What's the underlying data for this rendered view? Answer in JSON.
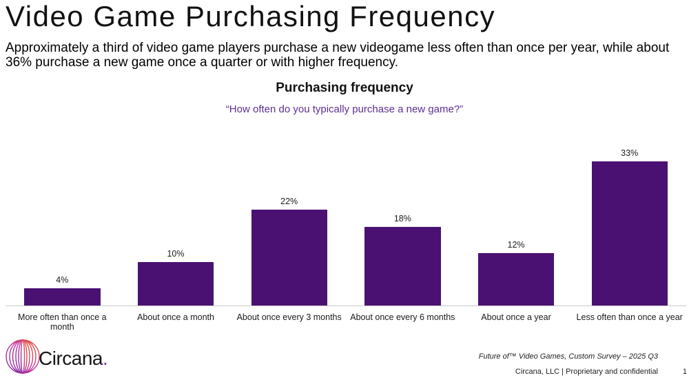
{
  "page": {
    "title": "Video Game Purchasing Frequency",
    "subtitle": "Approximately a third of video game players purchase a new videogame less often than once per year, while about 36% purchase a new game once a quarter or with higher frequency."
  },
  "chart": {
    "title": "Purchasing frequency",
    "question": "“How often do you typically purchase a new game?”"
  },
  "chart_data": {
    "type": "bar",
    "title": "Purchasing frequency",
    "subtitle": "“How often do you typically purchase a new game?”",
    "categories": [
      "More often than once a month",
      "About once a month",
      "About once every 3 months",
      "About once every 6 months",
      "About once a year",
      "Less often than once a year"
    ],
    "values": [
      4,
      10,
      22,
      18,
      12,
      33
    ],
    "value_labels": [
      "4%",
      "10%",
      "22%",
      "18%",
      "12%",
      "33%"
    ],
    "bar_color": "#4A1172",
    "ylim": [
      0,
      35
    ],
    "grid": false,
    "legend": "none",
    "data_labels": "above-bars",
    "xlabel": "",
    "ylabel": ""
  },
  "footer": {
    "logo_text": "Circana",
    "logo_period": ".",
    "source_line": "Future of™ Video Games, Custom Survey – 2025 Q3",
    "confidential_line": "Circana, LLC |  Proprietary and confidential",
    "page_number": "1"
  },
  "colors": {
    "bar": "#4A1172",
    "accent_purple": "#5C2E91",
    "axis_line": "#C8C8C8",
    "logo_gradient_start": "#F0582A",
    "logo_gradient_end": "#7D2AA8"
  }
}
